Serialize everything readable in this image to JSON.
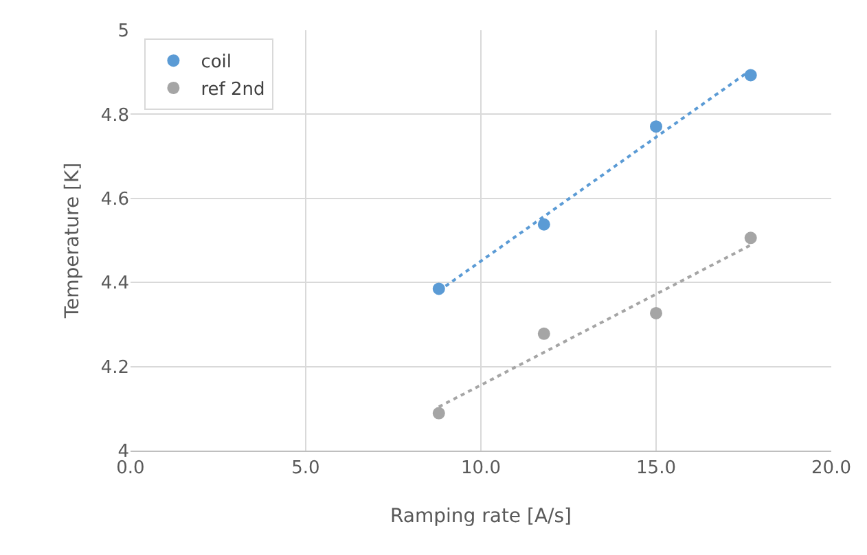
{
  "chart_data": {
    "type": "scatter",
    "xlabel": "Ramping rate [A/s]",
    "ylabel": "Temperature [K]",
    "xlim": [
      0,
      20
    ],
    "xticks": [
      {
        "value": 0,
        "label": "0.0"
      },
      {
        "value": 5,
        "label": "5.0"
      },
      {
        "value": 10,
        "label": "10.0"
      },
      {
        "value": 15,
        "label": "15.0"
      },
      {
        "value": 20,
        "label": "20.0"
      }
    ],
    "ylim": [
      4,
      5
    ],
    "yticks": [
      4,
      4.2,
      4.4,
      4.6,
      4.8,
      5
    ],
    "grid": true,
    "legend": "top left",
    "marker": "circle",
    "series": [
      {
        "name": "coil",
        "color": "#5b9bd5",
        "x": [
          8.8,
          11.8,
          15.0,
          17.7
        ],
        "values": [
          4.385,
          4.538,
          4.771,
          4.893
        ]
      },
      {
        "name": "ref 2nd",
        "color": "#a5a5a5",
        "x": [
          8.8,
          11.8,
          15.0,
          17.7
        ],
        "values": [
          4.089,
          4.278,
          4.327,
          4.506
        ]
      },
      {
        "type": "line",
        "color": "#5b9bd5",
        "line_style": "dotted",
        "marker": "none",
        "x": [
          8.8,
          17.7
        ],
        "values": [
          4.38,
          4.905
        ]
      },
      {
        "type": "line",
        "color": "#a5a5a5",
        "line_style": "dotted",
        "marker": "none",
        "x": [
          8.8,
          17.7
        ],
        "values": [
          4.104,
          4.489
        ]
      }
    ]
  }
}
